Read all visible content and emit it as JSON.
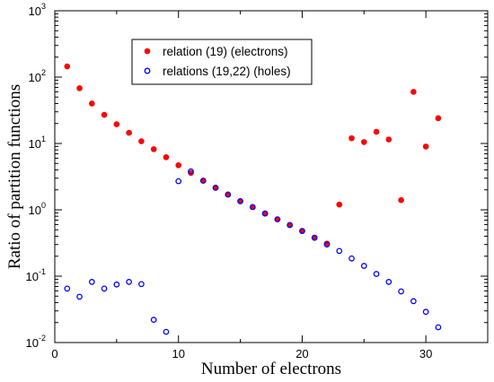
{
  "chart_data": {
    "type": "scatter",
    "title": "",
    "xlabel": "Number of electrons",
    "ylabel": "Ratio of partition functions",
    "xlim": [
      0,
      35
    ],
    "ylim": [
      0.01,
      1000
    ],
    "yscale": "log",
    "grid": false,
    "legend_placement": "top-center",
    "x_ticks": [
      0,
      10,
      20,
      30
    ],
    "y_ticks": [
      {
        "value": 0.01,
        "base": "10",
        "exp": "-2"
      },
      {
        "value": 0.1,
        "base": "10",
        "exp": "-1"
      },
      {
        "value": 1,
        "base": "10",
        "exp": "0"
      },
      {
        "value": 10,
        "base": "10",
        "exp": "1"
      },
      {
        "value": 100,
        "base": "10",
        "exp": "2"
      },
      {
        "value": 1000,
        "base": "10",
        "exp": "3"
      }
    ],
    "series": [
      {
        "name": "relation (19) (electrons)",
        "marker": "filled-circle",
        "color": "#ff0000",
        "x": [
          1,
          2,
          3,
          4,
          5,
          6,
          7,
          8,
          9,
          10,
          11,
          12,
          13,
          14,
          15,
          16,
          17,
          18,
          19,
          20,
          21,
          22,
          23,
          24,
          25,
          26,
          27,
          28,
          29,
          30,
          31
        ],
        "y": [
          145,
          68,
          40,
          27,
          19.5,
          14.5,
          10.8,
          8.2,
          6.2,
          4.7,
          3.6,
          2.75,
          2.15,
          1.7,
          1.35,
          1.1,
          0.88,
          0.72,
          0.59,
          0.48,
          0.38,
          0.31,
          1.2,
          12,
          10.5,
          15,
          11.5,
          1.4,
          60,
          9,
          24
        ]
      },
      {
        "name": "relations (19,22) (holes)",
        "marker": "open-circle",
        "color": "#0000ff",
        "x": [
          1,
          2,
          3,
          4,
          5,
          6,
          7,
          8,
          9,
          10,
          11,
          12,
          13,
          14,
          15,
          16,
          17,
          18,
          19,
          20,
          21,
          22,
          23,
          24,
          25,
          26,
          27,
          28,
          29,
          30,
          31
        ],
        "y": [
          0.065,
          0.049,
          0.082,
          0.065,
          0.075,
          0.082,
          0.076,
          0.022,
          0.0145,
          2.7,
          3.8,
          2.75,
          2.15,
          1.7,
          1.35,
          1.1,
          0.88,
          0.72,
          0.59,
          0.48,
          0.38,
          0.3,
          0.24,
          0.185,
          0.143,
          0.108,
          0.082,
          0.059,
          0.042,
          0.029,
          0.017
        ]
      }
    ]
  }
}
